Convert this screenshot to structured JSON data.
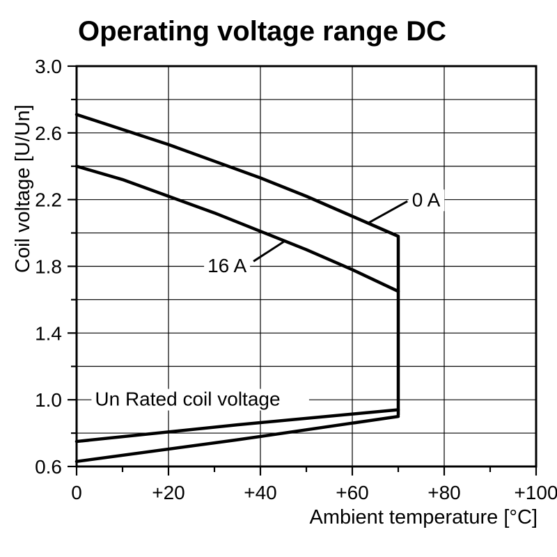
{
  "chart_data": {
    "type": "line",
    "title": "Operating voltage range DC",
    "xlabel": "Ambient temperature [°C]",
    "ylabel": "Coil voltage [U/Un]",
    "xlim": [
      0,
      100
    ],
    "ylim": [
      0.6,
      3.0
    ],
    "grid": true,
    "legend": "none",
    "xticks": [
      0,
      20,
      40,
      60,
      80,
      100
    ],
    "xtick_labels": [
      "0",
      "+20",
      "+40",
      "+60",
      "+80",
      "+100"
    ],
    "xticks_minor": [
      10,
      30,
      50,
      70,
      90
    ],
    "yticks": [
      3.0,
      2.6,
      2.2,
      1.8,
      1.4,
      1.0,
      0.6
    ],
    "ytick_labels": [
      "3.0",
      "2.6",
      "2.2",
      "1.8",
      "1.4",
      "1.0",
      "0.6"
    ],
    "yticks_minor": [
      2.8,
      2.4,
      2.0,
      1.6,
      1.2,
      0.8
    ],
    "xgrid": [
      20,
      40,
      60,
      80
    ],
    "ygrid": [
      2.8,
      2.6,
      2.4,
      2.2,
      2.0,
      1.8,
      1.6,
      1.4,
      1.2,
      1.0,
      0.8
    ],
    "series": [
      {
        "name": "0 A",
        "x": [
          0,
          10,
          20,
          30,
          40,
          50,
          60,
          65,
          70,
          70
        ],
        "y": [
          2.71,
          2.62,
          2.53,
          2.43,
          2.33,
          2.22,
          2.1,
          2.04,
          1.98,
          0.91
        ]
      },
      {
        "name": "16 A",
        "x": [
          0,
          10,
          20,
          30,
          40,
          50,
          60,
          70
        ],
        "y": [
          2.4,
          2.32,
          2.22,
          2.12,
          2.01,
          1.9,
          1.78,
          1.65
        ]
      },
      {
        "name": "lower-limit-upper-line",
        "x": [
          0,
          35,
          70
        ],
        "y": [
          0.75,
          0.85,
          0.94
        ]
      },
      {
        "name": "lower-limit-lower-line",
        "x": [
          0,
          35,
          70
        ],
        "y": [
          0.63,
          0.76,
          0.9
        ]
      }
    ],
    "annotations": [
      {
        "text": "0 A",
        "x": 73.0,
        "y": 2.16,
        "leader": {
          "x1": 72.0,
          "y1": 2.19,
          "x2": 63.5,
          "y2": 2.06
        }
      },
      {
        "text": "16 A",
        "x": 28.5,
        "y": 1.765,
        "leader": {
          "x1": 38.5,
          "y1": 1.83,
          "x2": 45.5,
          "y2": 1.955
        }
      },
      {
        "text": "Un Rated coil voltage",
        "x": 4.0,
        "y": 0.965
      }
    ]
  }
}
